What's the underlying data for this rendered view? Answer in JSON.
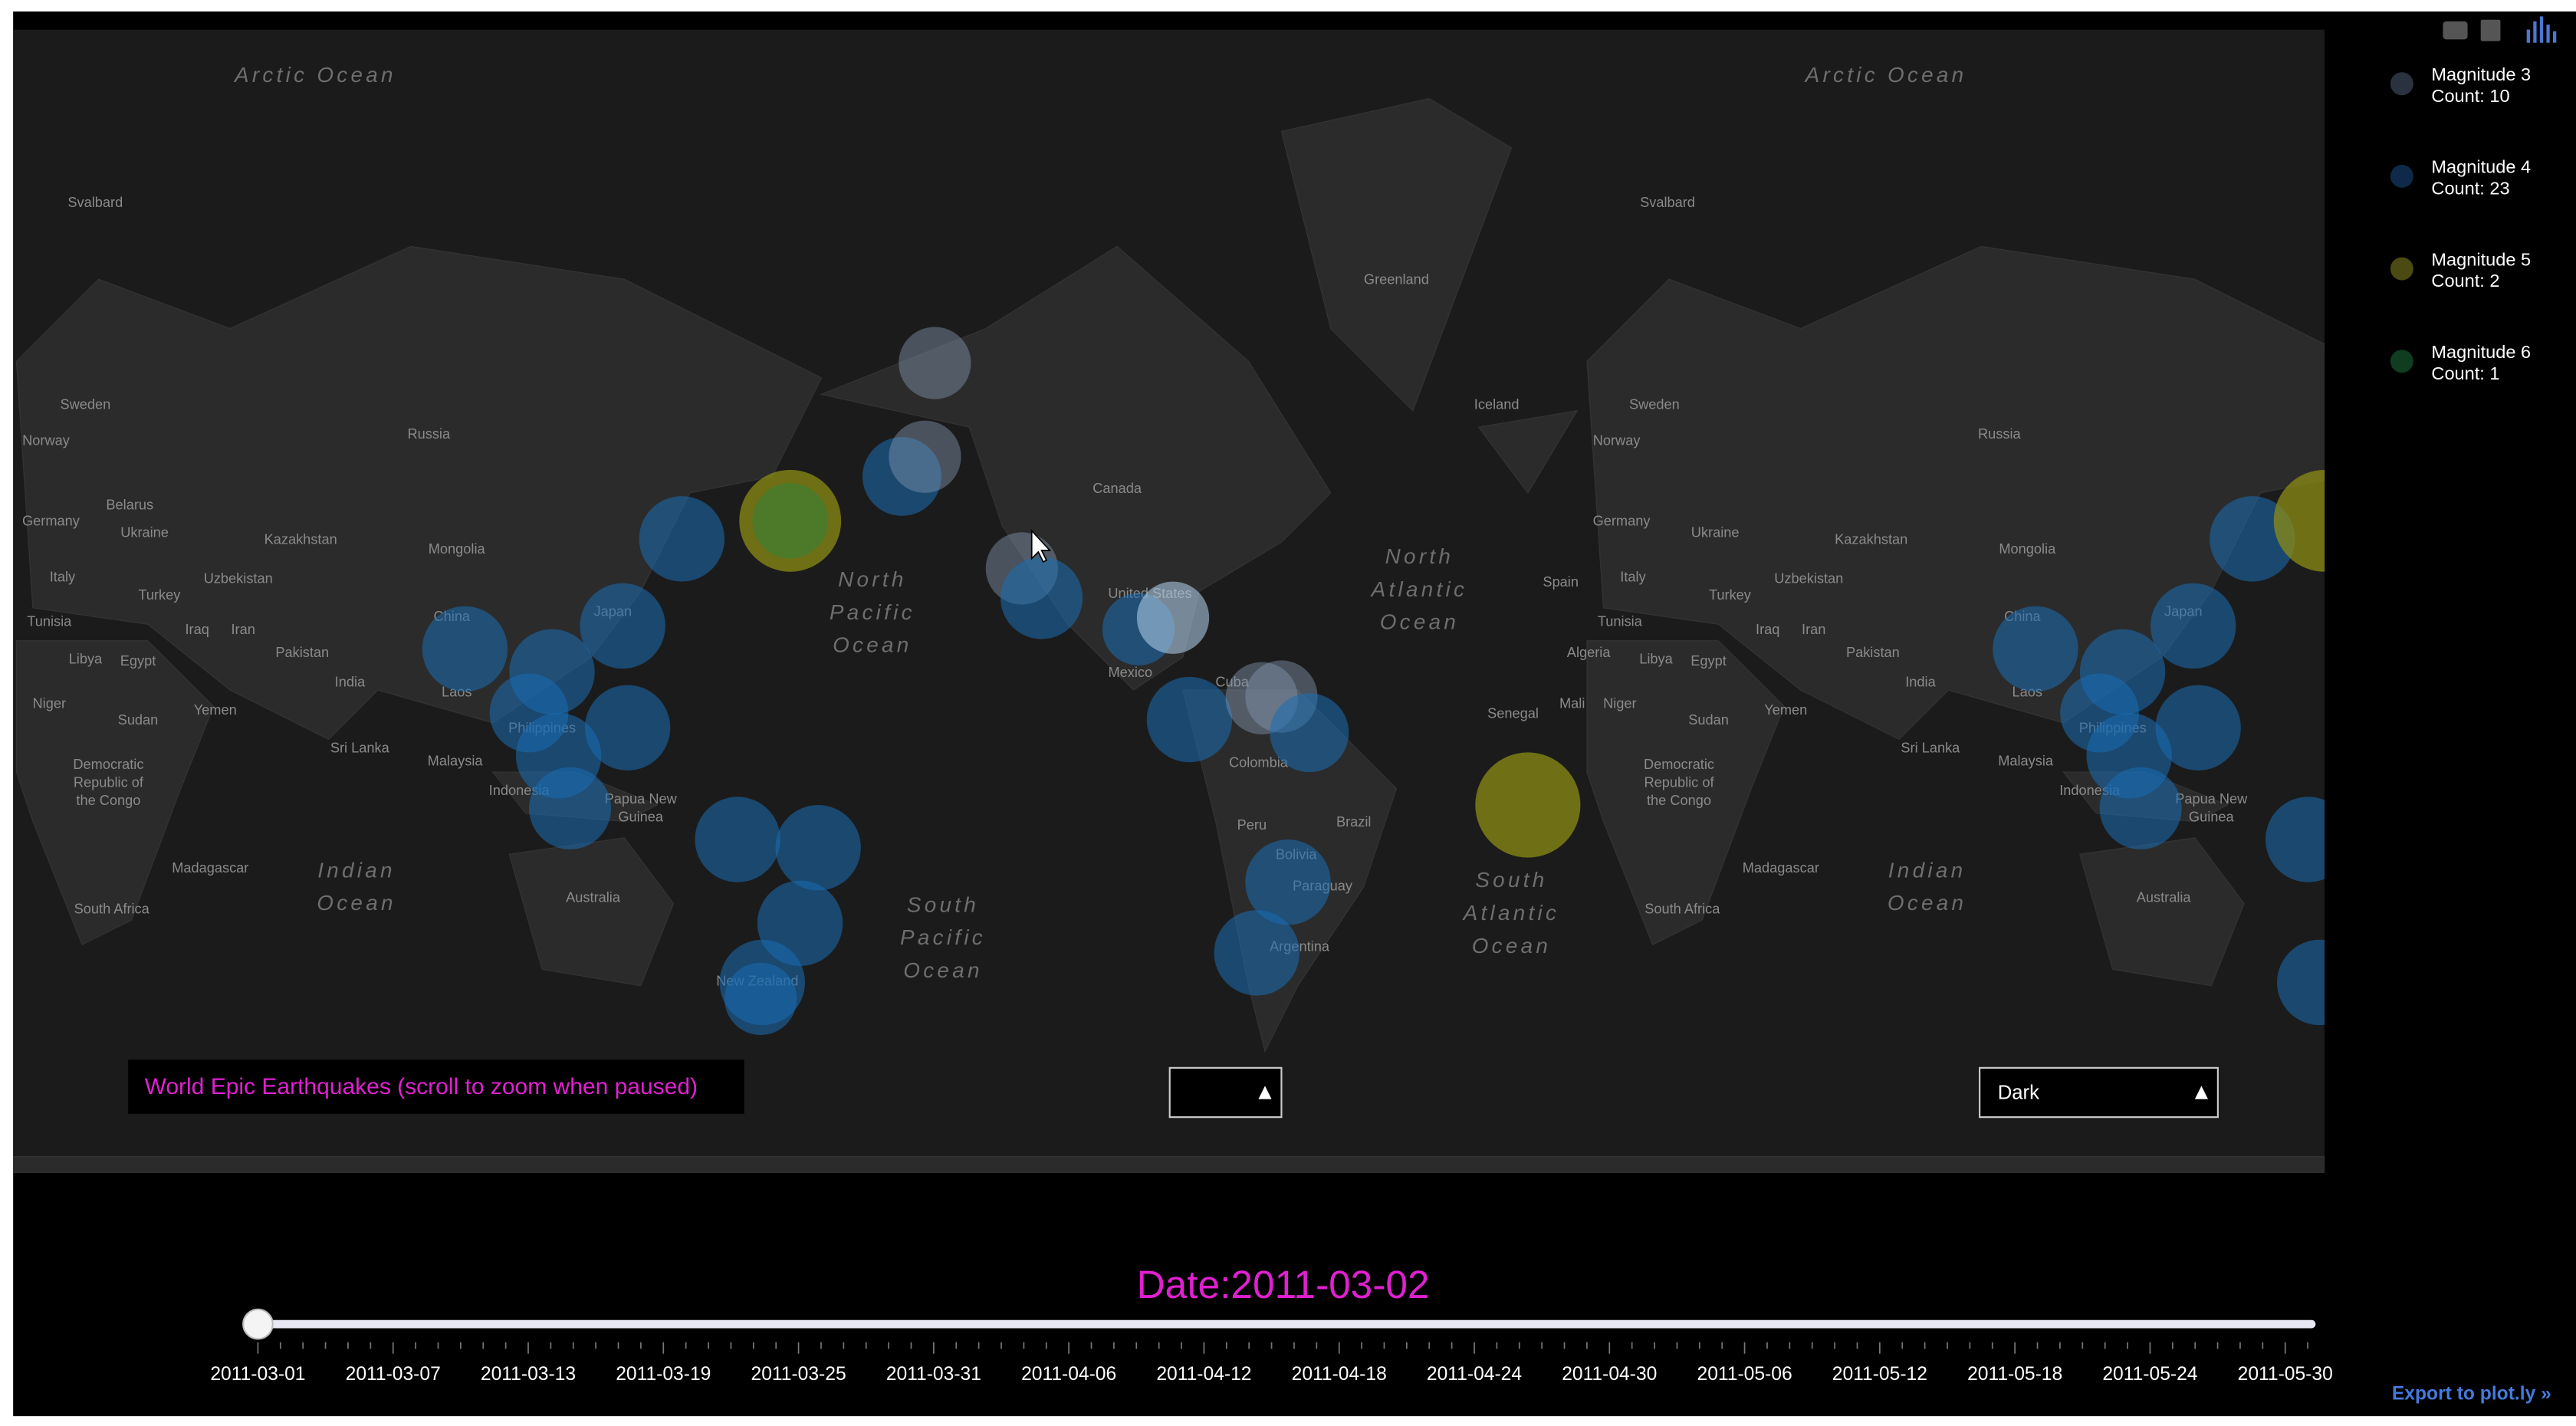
{
  "legend": [
    {
      "name": "Magnitude 3",
      "count": "Count: 10",
      "color": "#2a3240"
    },
    {
      "name": "Magnitude 4",
      "count": "Count: 23",
      "color": "#0e2a48"
    },
    {
      "name": "Magnitude 5",
      "count": "Count: 2",
      "color": "#4a4a12"
    },
    {
      "name": "Magnitude 6",
      "count": "Count: 1",
      "color": "#103c20"
    }
  ],
  "map": {
    "labels": [
      "Svalbard",
      "Sweden",
      "Norway",
      "Russia",
      "Belarus",
      "Germany",
      "Ukraine",
      "Kazakhstan",
      "Mongolia",
      "Italy",
      "Uzbekistan",
      "Turkey",
      "Tunisia",
      "Iraq",
      "Iran",
      "Libya",
      "Egypt",
      "Pakistan",
      "India",
      "China",
      "Japan",
      "Niger",
      "Yemen",
      "Sudan",
      "Laos",
      "Philippines",
      "Sri Lanka",
      "Malaysia",
      "Indonesia",
      "Madagascar",
      "South Africa",
      "Australia",
      "New Zealand",
      "Greenland",
      "Iceland",
      "Canada",
      "United States",
      "Mexico",
      "Cuba",
      "Colombia",
      "Peru",
      "Brazil",
      "Bolivia",
      "Paraguay",
      "Argentina",
      "Senegal",
      "Spain",
      "Algeria",
      "Mali",
      "Svalbard",
      "Sweden",
      "Norway",
      "Russia",
      "Germany",
      "Ukraine",
      "Kazakhstan",
      "Mongolia",
      "Italy",
      "Uzbekistan",
      "Turkey",
      "Tunisia",
      "Iraq",
      "Iran",
      "Libya",
      "Egypt",
      "Pakistan",
      "India",
      "China",
      "Japan",
      "Niger",
      "Sudan",
      "Laos",
      "Philippines",
      "Sri Lanka",
      "Malaysia",
      "Indonesia",
      "Madagascar",
      "South Africa",
      "Australia",
      "Yemen"
    ],
    "multiline": [
      {
        "lines": [
          "Democratic",
          "Republic of",
          "the Congo"
        ]
      },
      {
        "lines": [
          "Papua New",
          "Guinea"
        ]
      },
      {
        "lines": [
          "Democratic",
          "Republic of",
          "the Congo"
        ]
      },
      {
        "lines": [
          "Papua New",
          "Guinea"
        ]
      }
    ],
    "oceans": [
      {
        "lines": [
          "Arctic Ocean"
        ]
      },
      {
        "lines": [
          "Arctic Ocean"
        ]
      },
      {
        "lines": [
          "North",
          "Pacific",
          "Ocean"
        ]
      },
      {
        "lines": [
          "South",
          "Pacific",
          "Ocean"
        ]
      },
      {
        "lines": [
          "Indian",
          "Ocean"
        ]
      },
      {
        "lines": [
          "Indian",
          "Ocean"
        ]
      },
      {
        "lines": [
          "North",
          "Atlantic",
          "Ocean"
        ]
      },
      {
        "lines": [
          "South",
          "Atlantic",
          "Ocean"
        ]
      }
    ]
  },
  "title_box": "World Epic Earthquakes (scroll to zoom when paused)",
  "dropdown": "Dark",
  "slider": {
    "current": "Date:2011-03-02",
    "ticks": [
      "2011-03-01",
      "2011-03-07",
      "2011-03-13",
      "2011-03-19",
      "2011-03-25",
      "2011-03-31",
      "2011-04-06",
      "2011-04-12",
      "2011-04-18",
      "2011-04-24",
      "2011-04-30",
      "2011-05-06",
      "2011-05-12",
      "2011-05-18",
      "2011-05-24",
      "2011-05-30"
    ]
  },
  "export_link": "Export to plot.ly »"
}
